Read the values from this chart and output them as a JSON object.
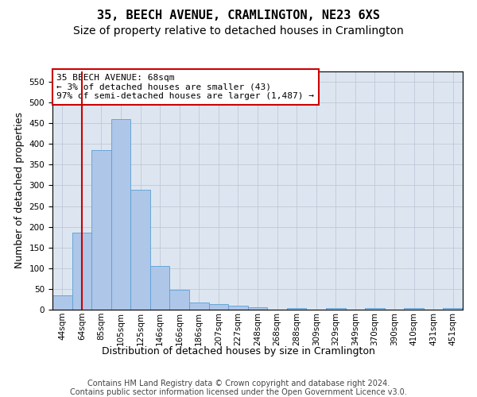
{
  "title1": "35, BEECH AVENUE, CRAMLINGTON, NE23 6XS",
  "title2": "Size of property relative to detached houses in Cramlington",
  "xlabel": "Distribution of detached houses by size in Cramlington",
  "ylabel": "Number of detached properties",
  "bin_labels": [
    "44sqm",
    "64sqm",
    "85sqm",
    "105sqm",
    "125sqm",
    "146sqm",
    "166sqm",
    "186sqm",
    "207sqm",
    "227sqm",
    "248sqm",
    "268sqm",
    "288sqm",
    "309sqm",
    "329sqm",
    "349sqm",
    "370sqm",
    "390sqm",
    "410sqm",
    "431sqm",
    "451sqm"
  ],
  "bar_values": [
    35,
    185,
    385,
    460,
    290,
    105,
    48,
    18,
    13,
    9,
    5,
    0,
    3,
    0,
    3,
    0,
    3,
    0,
    3,
    0,
    3
  ],
  "bar_color": "#aec6e8",
  "bar_edge_color": "#5a9fd4",
  "annotation_line1": "35 BEECH AVENUE: 68sqm",
  "annotation_line2": "← 3% of detached houses are smaller (43)",
  "annotation_line3": "97% of semi-detached houses are larger (1,487) →",
  "annotation_box_color": "#ffffff",
  "annotation_box_edge_color": "#cc0000",
  "vline_x": 1.0,
  "vline_color": "#cc0000",
  "ylim_max": 575,
  "yticks": [
    0,
    50,
    100,
    150,
    200,
    250,
    300,
    350,
    400,
    450,
    500,
    550
  ],
  "grid_color": "#c0c8d8",
  "bg_color": "#dde6f0",
  "footer1": "Contains HM Land Registry data © Crown copyright and database right 2024.",
  "footer2": "Contains public sector information licensed under the Open Government Licence v3.0.",
  "title1_fontsize": 11,
  "title2_fontsize": 10,
  "xlabel_fontsize": 9,
  "ylabel_fontsize": 9,
  "tick_fontsize": 7.5,
  "annotation_fontsize": 8,
  "footer_fontsize": 7
}
